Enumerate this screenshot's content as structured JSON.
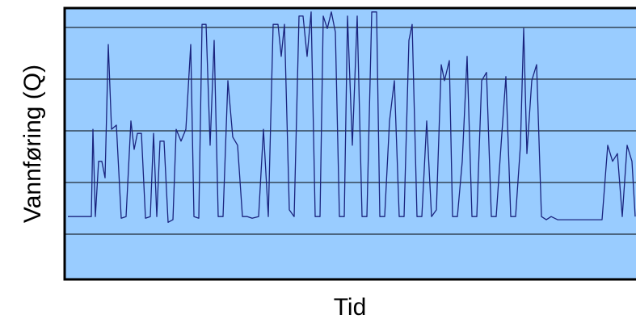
{
  "chart_data": {
    "type": "line",
    "ylabel": "Vannføring (Q)",
    "xlabel": "Tid",
    "x": [
      4,
      33,
      35,
      38,
      42,
      46,
      50,
      54,
      58,
      64,
      70,
      76,
      82,
      86,
      90,
      95,
      100,
      106,
      110,
      114,
      118,
      123,
      128,
      134,
      138,
      144,
      150,
      156,
      160,
      166,
      170,
      175,
      180,
      185,
      190,
      196,
      202,
      208,
      214,
      220,
      226,
      232,
      240,
      246,
      252,
      258,
      264,
      268,
      272,
      278,
      284,
      290,
      295,
      300,
      305,
      310,
      316,
      320,
      325,
      330,
      335,
      340,
      346,
      350,
      356,
      362,
      368,
      374,
      380,
      386,
      390,
      396,
      402,
      408,
      414,
      420,
      426,
      430,
      436,
      442,
      448,
      454,
      460,
      466,
      470,
      476,
      480,
      486,
      492,
      498,
      504,
      510,
      516,
      522,
      528,
      534,
      540,
      546,
      552,
      558,
      564,
      568,
      572,
      578,
      584,
      590,
      596,
      602,
      610,
      620,
      640,
      665,
      672,
      678,
      684,
      690,
      696,
      702,
      706
    ],
    "series": [
      {
        "color": "#1a237e",
        "values": [
          0.34,
          0.34,
          2.03,
          0.34,
          1.41,
          1.41,
          1.09,
          3.67,
          2.03,
          2.11,
          0.31,
          0.34,
          2.19,
          1.64,
          1.95,
          1.95,
          0.31,
          0.34,
          1.95,
          0.34,
          1.8,
          1.8,
          0.23,
          0.28,
          2.03,
          1.8,
          2.03,
          3.67,
          0.34,
          0.31,
          4.06,
          4.06,
          1.72,
          3.75,
          0.34,
          0.34,
          2.97,
          1.88,
          1.72,
          0.34,
          0.34,
          0.31,
          0.34,
          2.03,
          0.34,
          4.06,
          4.06,
          3.44,
          4.06,
          0.47,
          0.34,
          4.22,
          4.22,
          3.44,
          4.3,
          0.34,
          0.34,
          4.22,
          3.98,
          4.3,
          3.91,
          0.34,
          0.34,
          4.22,
          1.72,
          4.22,
          0.34,
          0.34,
          4.3,
          4.3,
          0.34,
          0.34,
          2.19,
          2.97,
          0.34,
          0.34,
          3.75,
          4.06,
          0.34,
          0.34,
          2.19,
          0.34,
          0.47,
          3.28,
          2.97,
          3.36,
          0.34,
          0.34,
          1.41,
          3.44,
          0.34,
          0.34,
          2.97,
          3.13,
          0.34,
          0.34,
          1.72,
          3.05,
          0.34,
          0.34,
          1.72,
          3.98,
          1.56,
          2.97,
          3.28,
          0.34,
          0.28,
          0.34,
          0.28,
          0.28,
          0.28,
          0.28,
          1.72,
          1.41,
          1.56,
          0.34,
          1.72,
          1.41,
          0.34
        ]
      }
    ],
    "xlim": [
      0,
      707
    ],
    "ylim": [
      -0.875,
      4.375
    ],
    "yticks": [
      0,
      1,
      2,
      3,
      4
    ],
    "grid": true,
    "background": "#99ccff"
  }
}
